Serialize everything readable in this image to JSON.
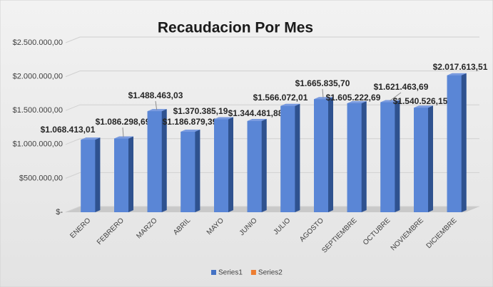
{
  "chart_data": {
    "type": "bar3d",
    "title": "Recaudacion Por Mes",
    "categories": [
      "ENERO",
      "FEBRERO",
      "MARZO",
      "ABRIL",
      "MAYO",
      "JUNIO",
      "JULIO",
      "AGOSTO",
      "SEPTIEMBRE",
      "OCTUBRE",
      "NOVIEMBRE",
      "DICIEMBRE"
    ],
    "series": [
      {
        "name": "Series1",
        "color": "#4472c4",
        "values": [
          1068413.01,
          1086298.69,
          1488463.03,
          1186879.39,
          1370385.19,
          1344481.88,
          1566072.01,
          1665835.7,
          1605222.69,
          1621463.69,
          1540526.15,
          2017613.51
        ],
        "value_labels": [
          "$1.068.413,01",
          "$1.086.298,69",
          "$1.488.463,03",
          "$1.186.879,39",
          "$1.370.385,19",
          "$1.344.481,88",
          "$1.566.072,01",
          "$1.665.835,70",
          "$1.605.222,69",
          "$1.621.463,69",
          "$1.540.526,15",
          "$2.017.613,51"
        ]
      },
      {
        "name": "Series2",
        "color": "#ed7d31",
        "values": [
          null,
          null,
          null,
          null,
          null,
          null,
          null,
          null,
          null,
          null,
          null,
          null
        ]
      }
    ],
    "ylim": [
      0,
      2500000
    ],
    "yticks": [
      {
        "value": 0,
        "label": "$-"
      },
      {
        "value": 500000,
        "label": "$500.000,00"
      },
      {
        "value": 1000000,
        "label": "$1.000.000,00"
      },
      {
        "value": 1500000,
        "label": "$1.500.000,00"
      },
      {
        "value": 2000000,
        "label": "$2.000.000,00"
      },
      {
        "value": 2500000,
        "label": "$2.500.000,00"
      }
    ],
    "grid": true,
    "legend": "bottom"
  }
}
